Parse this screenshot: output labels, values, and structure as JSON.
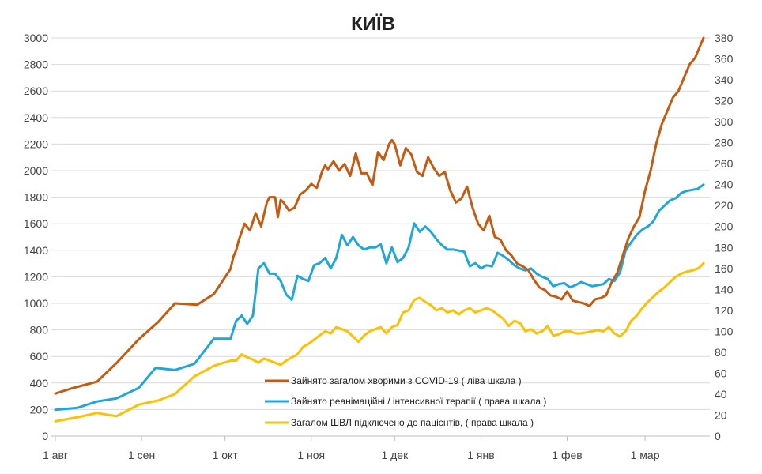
{
  "chart_data": {
    "type": "line",
    "title": "КИЇВ",
    "x_ticks": [
      "1 авг",
      "1 сен",
      "1 окт",
      "1 ноя",
      "1 дек",
      "1 янв",
      "1 фев",
      "1 мар"
    ],
    "x_tick_days": [
      0,
      31,
      61,
      92,
      122,
      153,
      184,
      212
    ],
    "xlim": [
      0,
      235
    ],
    "y_left": {
      "lim": [
        0,
        3000
      ],
      "ticks": [
        "0",
        "200",
        "400",
        "600",
        "800",
        "1000",
        "1200",
        "1400",
        "1600",
        "1800",
        "2000",
        "2200",
        "2400",
        "2600",
        "2800",
        "3000"
      ]
    },
    "y_right": {
      "lim": [
        0,
        380
      ],
      "ticks": [
        "0",
        "20",
        "40",
        "60",
        "80",
        "100",
        "120",
        "140",
        "160",
        "180",
        "200",
        "220",
        "240",
        "260",
        "280",
        "300",
        "320",
        "340",
        "360",
        "380"
      ]
    },
    "grid": true,
    "legend_position": "lower-center",
    "colors": {
      "hospitalized": "#C55A11",
      "icu": "#1FA6DC",
      "ventilator": "#FFC000"
    },
    "series": [
      {
        "name": "Зайнято загалом хворими з COVID-19 ( ліва шкала )",
        "axis": "left",
        "color": "#C55A11",
        "x": [
          0,
          6,
          15,
          22,
          30,
          37,
          43,
          51,
          57,
          63,
          64,
          65,
          66,
          68,
          70,
          72,
          74,
          76,
          77,
          79,
          80,
          81,
          82,
          84,
          86,
          88,
          90,
          92,
          94,
          96,
          97,
          98,
          100,
          102,
          104,
          106,
          108,
          110,
          112,
          114,
          116,
          118,
          120,
          121,
          122,
          124,
          126,
          128,
          130,
          132,
          134,
          136,
          138,
          140,
          142,
          144,
          146,
          148,
          150,
          152,
          154,
          156,
          158,
          160,
          162,
          164,
          166,
          168,
          170,
          172,
          174,
          176,
          178,
          180,
          182,
          184,
          186,
          188,
          190,
          192,
          194,
          196,
          198,
          200,
          202,
          204,
          206,
          208,
          210,
          212,
          214,
          216,
          218,
          220,
          222,
          224,
          226,
          228,
          230,
          231,
          232,
          233
        ],
        "values": [
          320,
          360,
          410,
          550,
          730,
          860,
          1000,
          990,
          1070,
          1260,
          1350,
          1400,
          1480,
          1600,
          1550,
          1680,
          1580,
          1760,
          1800,
          1800,
          1650,
          1780,
          1760,
          1700,
          1720,
          1820,
          1850,
          1900,
          1870,
          2000,
          2040,
          2010,
          2070,
          2000,
          2050,
          1960,
          2130,
          1980,
          1980,
          1890,
          2140,
          2080,
          2200,
          2230,
          2200,
          2040,
          2170,
          2120,
          1990,
          1960,
          2100,
          2020,
          1960,
          1990,
          1850,
          1760,
          1790,
          1880,
          1720,
          1600,
          1550,
          1660,
          1500,
          1480,
          1400,
          1360,
          1300,
          1280,
          1250,
          1180,
          1120,
          1100,
          1060,
          1050,
          1030,
          1090,
          1020,
          1010,
          1000,
          980,
          1030,
          1040,
          1060,
          1160,
          1230,
          1360,
          1490,
          1580,
          1650,
          1850,
          2000,
          2200,
          2350,
          2450,
          2550,
          2600,
          2700,
          2800,
          2850,
          2900,
          2950,
          3000
        ]
      },
      {
        "name": "Зайнято реанімаційні / інтенсивної терапії ( права шкала )",
        "axis": "right",
        "color": "#1FA6DC",
        "x": [
          0,
          8,
          15,
          22,
          30,
          36,
          43,
          50,
          57,
          63,
          65,
          67,
          69,
          71,
          73,
          75,
          77,
          79,
          81,
          83,
          85,
          87,
          89,
          91,
          93,
          95,
          97,
          99,
          101,
          103,
          105,
          107,
          109,
          111,
          113,
          115,
          117,
          119,
          121,
          123,
          125,
          127,
          129,
          131,
          133,
          135,
          137,
          139,
          141,
          143,
          145,
          147,
          149,
          151,
          153,
          155,
          157,
          159,
          161,
          163,
          165,
          167,
          169,
          171,
          173,
          175,
          177,
          179,
          181,
          183,
          185,
          187,
          189,
          191,
          193,
          195,
          197,
          199,
          201,
          203,
          205,
          207,
          209,
          211,
          213,
          215,
          217,
          219,
          221,
          223,
          225,
          227,
          229,
          231,
          232,
          233
        ],
        "values": [
          25,
          27,
          33,
          36,
          46,
          65,
          63,
          69,
          93,
          93,
          110,
          115,
          107,
          115,
          160,
          165,
          155,
          155,
          148,
          135,
          130,
          153,
          150,
          148,
          163,
          165,
          170,
          160,
          170,
          192,
          182,
          190,
          182,
          178,
          180,
          180,
          183,
          165,
          180,
          166,
          170,
          180,
          203,
          195,
          200,
          195,
          188,
          182,
          178,
          178,
          177,
          176,
          162,
          165,
          160,
          163,
          162,
          175,
          172,
          168,
          163,
          160,
          158,
          160,
          155,
          152,
          150,
          143,
          145,
          146,
          142,
          144,
          147,
          145,
          143,
          144,
          145,
          150,
          148,
          156,
          177,
          185,
          192,
          197,
          200,
          205,
          215,
          220,
          225,
          227,
          232,
          234,
          235,
          236,
          238,
          240
        ]
      },
      {
        "name": "Загалом ШВЛ  підключено до пацієнтів, ( права шкала )",
        "axis": "right",
        "color": "#FFC000",
        "x": [
          0,
          8,
          15,
          22,
          30,
          37,
          43,
          50,
          57,
          63,
          65,
          67,
          69,
          71,
          73,
          75,
          77,
          79,
          81,
          83,
          85,
          87,
          89,
          91,
          93,
          95,
          97,
          99,
          101,
          103,
          105,
          107,
          109,
          111,
          113,
          115,
          117,
          119,
          121,
          123,
          125,
          127,
          129,
          131,
          133,
          135,
          137,
          139,
          141,
          143,
          145,
          147,
          149,
          151,
          153,
          155,
          157,
          159,
          161,
          163,
          165,
          167,
          169,
          171,
          173,
          175,
          177,
          179,
          181,
          183,
          185,
          187,
          189,
          191,
          193,
          195,
          197,
          199,
          201,
          203,
          205,
          207,
          209,
          211,
          213,
          215,
          217,
          219,
          221,
          223,
          225,
          227,
          229,
          231,
          232,
          233
        ],
        "values": [
          14,
          18,
          22,
          19,
          30,
          34,
          40,
          57,
          67,
          72,
          72,
          78,
          75,
          73,
          70,
          74,
          72,
          70,
          68,
          72,
          75,
          78,
          85,
          88,
          92,
          96,
          100,
          98,
          104,
          102,
          100,
          95,
          90,
          96,
          100,
          102,
          104,
          98,
          104,
          106,
          118,
          120,
          130,
          132,
          128,
          125,
          120,
          122,
          118,
          120,
          116,
          120,
          122,
          118,
          120,
          122,
          120,
          116,
          112,
          105,
          110,
          108,
          100,
          102,
          98,
          100,
          105,
          96,
          97,
          100,
          100,
          98,
          98,
          99,
          100,
          101,
          100,
          104,
          98,
          95,
          100,
          110,
          115,
          122,
          128,
          133,
          138,
          142,
          147,
          152,
          155,
          157,
          158,
          160,
          162,
          165
        ]
      }
    ]
  }
}
